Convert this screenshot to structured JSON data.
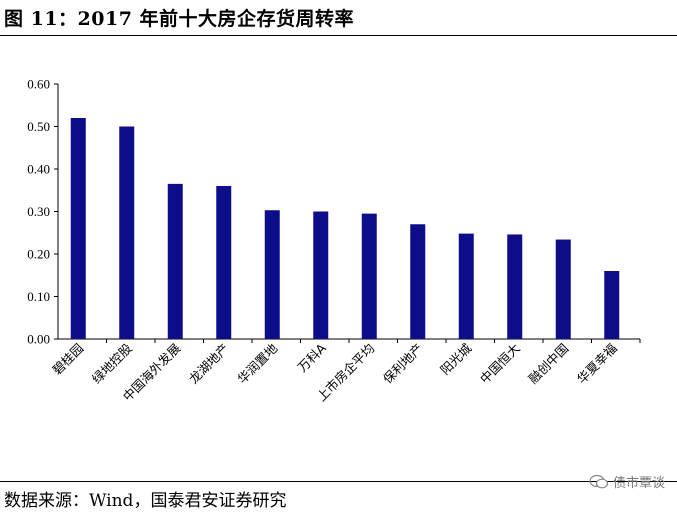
{
  "header": {
    "title": "图 11：2017 年前十大房企存货周转率"
  },
  "footer": {
    "source": "数据来源：Wind，国泰君安证券研究",
    "watermark": "债市覃谈"
  },
  "colors": {
    "bar": "#0d0d8a",
    "axis": "#000000"
  },
  "chart_data": {
    "type": "bar",
    "title": "",
    "xlabel": "",
    "ylabel": "",
    "ylim": [
      0,
      0.6
    ],
    "yticks": [
      "0.00",
      "0.10",
      "0.20",
      "0.30",
      "0.40",
      "0.50",
      "0.60"
    ],
    "categories": [
      "碧桂园",
      "绿地控股",
      "中国海外发展",
      "龙湖地产",
      "华润置地",
      "万科A",
      "上市房企平均",
      "保利地产",
      "阳光城",
      "中国恒大",
      "融创中国",
      "华夏幸福"
    ],
    "values": [
      0.52,
      0.5,
      0.365,
      0.36,
      0.303,
      0.3,
      0.295,
      0.27,
      0.248,
      0.246,
      0.234,
      0.16
    ],
    "grid": false,
    "legend": "none"
  }
}
